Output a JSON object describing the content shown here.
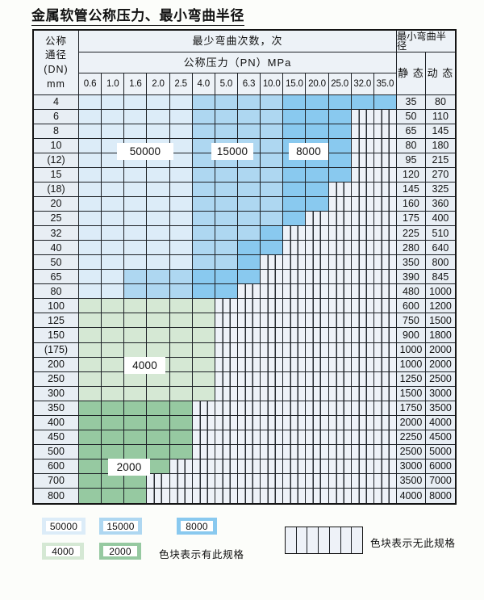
{
  "title": "金属软管公称压力、最小弯曲半径",
  "table": {
    "dn_header_lines": [
      "公称",
      "通径",
      "(DN)",
      "mm"
    ],
    "cycles_header": "最少弯曲次数，次",
    "pressure_header": "公称压力（PN）MPa",
    "radius_header": "最小弯曲半径",
    "static_header": "静 态",
    "dynamic_header": "动 态",
    "pressure_columns": [
      "0.6",
      "1.0",
      "1.6",
      "2.0",
      "2.5",
      "4.0",
      "5.0",
      "6.3",
      "10.0",
      "15.0",
      "20.0",
      "25.0",
      "32.0",
      "35.0"
    ],
    "cell_class_legend": {
      "5": "50000次",
      "1": "15000次",
      "8": "8000次",
      "4": "4000次",
      "2": "2000次",
      "x": "无此规格"
    },
    "rows": [
      {
        "dn": "4",
        "cells": "55555111188888",
        "static": "35",
        "dynamic": "80"
      },
      {
        "dn": "6",
        "cells": "555551111888xx",
        "static": "50",
        "dynamic": "110"
      },
      {
        "dn": "8",
        "cells": "555551111888xx",
        "static": "65",
        "dynamic": "145"
      },
      {
        "dn": "10",
        "cells": "555551111888xx",
        "static": "80",
        "dynamic": "180"
      },
      {
        "dn": "(12)",
        "cells": "555551111888xx",
        "static": "95",
        "dynamic": "215"
      },
      {
        "dn": "15",
        "cells": "555551111888xx",
        "static": "120",
        "dynamic": "270"
      },
      {
        "dn": "(18)",
        "cells": "55555111188xxx",
        "static": "145",
        "dynamic": "325"
      },
      {
        "dn": "20",
        "cells": "55555111188xxx",
        "static": "160",
        "dynamic": "360"
      },
      {
        "dn": "25",
        "cells": "5555511118xxxx",
        "static": "175",
        "dynamic": "400"
      },
      {
        "dn": "32",
        "cells": "555551118xxxxx",
        "static": "225",
        "dynamic": "510"
      },
      {
        "dn": "40",
        "cells": "555551188xxxxx",
        "static": "280",
        "dynamic": "640"
      },
      {
        "dn": "50",
        "cells": "55555118xxxxxx",
        "static": "350",
        "dynamic": "800"
      },
      {
        "dn": "65",
        "cells": "55111888xxxxxx",
        "static": "390",
        "dynamic": "845"
      },
      {
        "dn": "80",
        "cells": "5511188xxxxxxx",
        "static": "480",
        "dynamic": "1000"
      },
      {
        "dn": "100",
        "cells": "444444xxxxxxxx",
        "static": "600",
        "dynamic": "1200"
      },
      {
        "dn": "125",
        "cells": "444444xxxxxxxx",
        "static": "750",
        "dynamic": "1500"
      },
      {
        "dn": "150",
        "cells": "444444xxxxxxxx",
        "static": "900",
        "dynamic": "1800"
      },
      {
        "dn": "(175)",
        "cells": "444444xxxxxxxx",
        "static": "1000",
        "dynamic": "2000"
      },
      {
        "dn": "200",
        "cells": "444444xxxxxxxx",
        "static": "1000",
        "dynamic": "2000"
      },
      {
        "dn": "250",
        "cells": "444444xxxxxxxx",
        "static": "1250",
        "dynamic": "2500"
      },
      {
        "dn": "300",
        "cells": "444444xxxxxxxx",
        "static": "1500",
        "dynamic": "3000"
      },
      {
        "dn": "350",
        "cells": "22222xxxxxxxxx",
        "static": "1750",
        "dynamic": "3500"
      },
      {
        "dn": "400",
        "cells": "22222xxxxxxxxx",
        "static": "2000",
        "dynamic": "4000"
      },
      {
        "dn": "450",
        "cells": "22222xxxxxxxxx",
        "static": "2250",
        "dynamic": "4500"
      },
      {
        "dn": "500",
        "cells": "22222xxxxxxxxx",
        "static": "2500",
        "dynamic": "5000"
      },
      {
        "dn": "600",
        "cells": "2222xxxxxxxxxx",
        "static": "3000",
        "dynamic": "6000"
      },
      {
        "dn": "700",
        "cells": "222xxxxxxxxxxx",
        "static": "3500",
        "dynamic": "7000"
      },
      {
        "dn": "800",
        "cells": "222xxxxxxxxxxx",
        "static": "4000",
        "dynamic": "8000"
      }
    ]
  },
  "overlay_labels": [
    {
      "text": "50000"
    },
    {
      "text": "15000"
    },
    {
      "text": "8000"
    },
    {
      "text": "4000"
    },
    {
      "text": "2000"
    }
  ],
  "legend": {
    "swatches": [
      {
        "label": "50000"
      },
      {
        "label": "15000"
      },
      {
        "label": "8000"
      },
      {
        "label": "4000"
      },
      {
        "label": "2000"
      }
    ],
    "has_spec_note": "色块表示有此规格",
    "no_spec_note": "色块表示无此规格"
  },
  "colors": {
    "cycles_50000": "#dcecf8",
    "cycles_15000": "#aed7f1",
    "cycles_8000": "#89c9ef",
    "cycles_4000": "#d5e8d4",
    "cycles_2000": "#96c9a1",
    "no_spec_bg": "#eef2f8",
    "hatch_line": "#262b31",
    "header_bg": "#edf2f7",
    "label_bg": "#e8eef4",
    "page_bg": "#fcfdfa"
  },
  "chart_data": {
    "type": "table",
    "title": "金属软管公称压力、最小弯曲半径",
    "row_axis": "公称通径 (DN) mm",
    "column_axis": "公称压力（PN）MPa",
    "value_meaning": "最少弯曲次数，次（色块） / 最小弯曲半径（静态、动态）",
    "dn": [
      "4",
      "6",
      "8",
      "10",
      "(12)",
      "15",
      "(18)",
      "20",
      "25",
      "32",
      "40",
      "50",
      "65",
      "80",
      "100",
      "125",
      "150",
      "(175)",
      "200",
      "250",
      "300",
      "350",
      "400",
      "450",
      "500",
      "600",
      "700",
      "800"
    ],
    "pn": [
      0.6,
      1.0,
      1.6,
      2.0,
      2.5,
      4.0,
      5.0,
      6.3,
      10.0,
      15.0,
      20.0,
      25.0,
      32.0,
      35.0
    ],
    "series": [
      {
        "name": "最小弯曲半径 静态",
        "values": [
          35,
          50,
          65,
          80,
          95,
          120,
          145,
          160,
          175,
          225,
          280,
          350,
          390,
          480,
          600,
          750,
          900,
          1000,
          1000,
          1250,
          1500,
          1750,
          2000,
          2250,
          2500,
          3000,
          3500,
          4000
        ]
      },
      {
        "name": "最小弯曲半径 动态",
        "values": [
          80,
          110,
          145,
          180,
          215,
          270,
          325,
          360,
          400,
          510,
          640,
          800,
          845,
          1000,
          1200,
          1500,
          1800,
          2000,
          2000,
          2500,
          3000,
          3500,
          4000,
          4500,
          5000,
          6000,
          7000,
          8000
        ]
      }
    ],
    "bend_cycle_classes": [
      50000,
      15000,
      8000,
      4000,
      2000
    ]
  }
}
